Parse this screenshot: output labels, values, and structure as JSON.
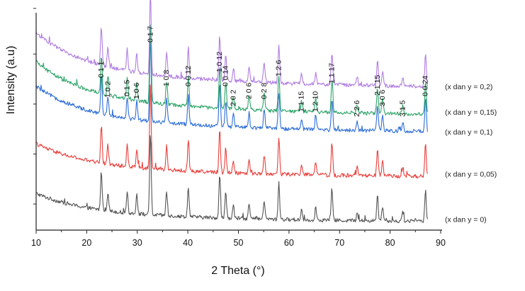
{
  "chart_data": {
    "type": "line",
    "title": "",
    "xlabel": "2 Theta (°)",
    "ylabel": "Intensity (a.u)",
    "xlim": [
      10,
      90
    ],
    "xticks": [
      "10",
      "20",
      "30",
      "40",
      "50",
      "60",
      "70",
      "80",
      "90"
    ],
    "y_tick_labels": false,
    "grid": false,
    "legend_placement": "right",
    "peaks": [
      {
        "hkl": "0 1 1",
        "x": 22.9
      },
      {
        "hkl": "1 0 2",
        "x": 24.2
      },
      {
        "hkl": "0 1 5",
        "x": 28.0
      },
      {
        "hkl": "1 0 6",
        "x": 29.9
      },
      {
        "hkl": "0 1 7",
        "x": 32.6
      },
      {
        "hkl": "1 0 8",
        "x": 35.8
      },
      {
        "hkl": "0 0 12",
        "x": 40.1
      },
      {
        "hkl": "1 0 12",
        "x": 46.3
      },
      {
        "hkl": "0 0 14",
        "x": 47.5
      },
      {
        "hkl": "2 0 2",
        "x": 49.0
      },
      {
        "hkl": "2 0 6",
        "x": 52.1
      },
      {
        "hkl": "0 2 8",
        "x": 55.1
      },
      {
        "hkl": "1 2 6",
        "x": 58.0
      },
      {
        "hkl": "1 1 15",
        "x": 62.5
      },
      {
        "hkl": "1 2 10",
        "x": 65.3
      },
      {
        "hkl": "1 1 17",
        "x": 68.5
      },
      {
        "hkl": "2 2 6",
        "x": 73.5
      },
      {
        "hkl": "2 1 15",
        "x": 77.5
      },
      {
        "hkl": "3 0 6",
        "x": 78.5
      },
      {
        "hkl": "3 1 5",
        "x": 82.5
      },
      {
        "hkl": "0 0 24",
        "x": 87.0
      }
    ],
    "series": [
      {
        "name": "(x dan y = 0)",
        "color": "#555555",
        "baseline": 0.0,
        "background": 0.13,
        "rise": 0.1
      },
      {
        "name": "(x dan y = 0,05)",
        "color": "#e8403c",
        "baseline": 0.21,
        "background": 0.15,
        "rise": 0.12
      },
      {
        "name": "(x dan y = 0,1)",
        "color": "#2f6fd6",
        "baseline": 0.42,
        "background": 0.22,
        "rise": 0.15
      },
      {
        "name": "(x dan y = 0,15)",
        "color": "#2fa56a",
        "baseline": 0.5,
        "background": 0.26,
        "rise": 0.17
      },
      {
        "name": "(x dan y = 0,2)",
        "color": "#b07ee0",
        "baseline": 0.63,
        "background": 0.26,
        "rise": 0.18
      }
    ]
  }
}
